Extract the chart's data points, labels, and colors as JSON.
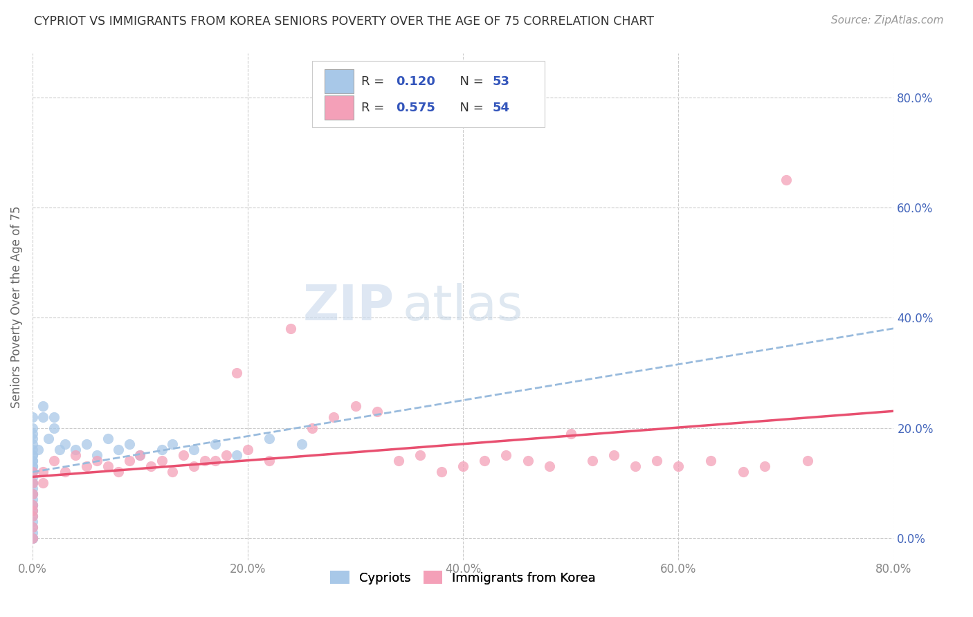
{
  "title": "CYPRIOT VS IMMIGRANTS FROM KOREA SENIORS POVERTY OVER THE AGE OF 75 CORRELATION CHART",
  "source": "Source: ZipAtlas.com",
  "ylabel": "Seniors Poverty Over the Age of 75",
  "legend_label1": "Cypriots",
  "legend_label2": "Immigrants from Korea",
  "R1": 0.12,
  "N1": 53,
  "R2": 0.575,
  "N2": 54,
  "color1": "#a8c8e8",
  "color2": "#f4a0b8",
  "trendline1_color": "#99bbdd",
  "trendline2_color": "#e85070",
  "ytick_color": "#4466bb",
  "watermark_zip": "ZIP",
  "watermark_atlas": "atlas",
  "xmin": 0.0,
  "xmax": 0.8,
  "ymin": -0.04,
  "ymax": 0.88,
  "cypriot_x": [
    0.0,
    0.0,
    0.0,
    0.0,
    0.0,
    0.0,
    0.0,
    0.0,
    0.0,
    0.0,
    0.0,
    0.0,
    0.0,
    0.0,
    0.0,
    0.0,
    0.0,
    0.0,
    0.0,
    0.0,
    0.0,
    0.0,
    0.0,
    0.0,
    0.0,
    0.0,
    0.0,
    0.0,
    0.0,
    0.0,
    0.0,
    0.005,
    0.01,
    0.01,
    0.015,
    0.02,
    0.02,
    0.025,
    0.03,
    0.04,
    0.05,
    0.06,
    0.07,
    0.08,
    0.09,
    0.1,
    0.12,
    0.13,
    0.15,
    0.17,
    0.19,
    0.22,
    0.25
  ],
  "cypriot_y": [
    0.0,
    0.0,
    0.0,
    0.01,
    0.02,
    0.03,
    0.04,
    0.05,
    0.06,
    0.07,
    0.08,
    0.09,
    0.1,
    0.11,
    0.12,
    0.13,
    0.14,
    0.15,
    0.16,
    0.17,
    0.18,
    0.19,
    0.2,
    0.22,
    0.1,
    0.08,
    0.06,
    0.12,
    0.14,
    0.15,
    0.13,
    0.16,
    0.22,
    0.24,
    0.18,
    0.2,
    0.22,
    0.16,
    0.17,
    0.16,
    0.17,
    0.15,
    0.18,
    0.16,
    0.17,
    0.15,
    0.16,
    0.17,
    0.16,
    0.17,
    0.15,
    0.18,
    0.17
  ],
  "korea_x": [
    0.0,
    0.0,
    0.0,
    0.0,
    0.0,
    0.0,
    0.0,
    0.0,
    0.01,
    0.01,
    0.02,
    0.03,
    0.04,
    0.05,
    0.06,
    0.07,
    0.08,
    0.09,
    0.1,
    0.11,
    0.12,
    0.13,
    0.14,
    0.15,
    0.16,
    0.17,
    0.18,
    0.19,
    0.2,
    0.22,
    0.24,
    0.26,
    0.28,
    0.3,
    0.32,
    0.34,
    0.36,
    0.38,
    0.4,
    0.42,
    0.44,
    0.46,
    0.48,
    0.5,
    0.52,
    0.54,
    0.56,
    0.58,
    0.6,
    0.63,
    0.66,
    0.68,
    0.7,
    0.72
  ],
  "korea_y": [
    0.0,
    0.02,
    0.04,
    0.05,
    0.06,
    0.08,
    0.1,
    0.12,
    0.1,
    0.12,
    0.14,
    0.12,
    0.15,
    0.13,
    0.14,
    0.13,
    0.12,
    0.14,
    0.15,
    0.13,
    0.14,
    0.12,
    0.15,
    0.13,
    0.14,
    0.14,
    0.15,
    0.3,
    0.16,
    0.14,
    0.38,
    0.2,
    0.22,
    0.24,
    0.23,
    0.14,
    0.15,
    0.12,
    0.13,
    0.14,
    0.15,
    0.14,
    0.13,
    0.19,
    0.14,
    0.15,
    0.13,
    0.14,
    0.13,
    0.14,
    0.12,
    0.13,
    0.65,
    0.14
  ]
}
